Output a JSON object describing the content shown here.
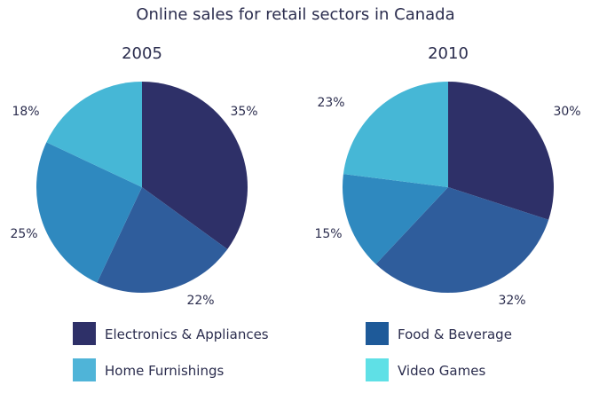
{
  "chart_data": {
    "type": "pie",
    "title": "Online sales for retail sectors in Canada",
    "categories": [
      "Electronics & Appliances",
      "Food & Beverage",
      "Home Furnishings",
      "Video Games"
    ],
    "series": [
      {
        "name": "2005",
        "values": [
          35,
          22,
          25,
          18
        ],
        "labels": [
          "35%",
          "22%",
          "25%",
          "18%"
        ]
      },
      {
        "name": "2010",
        "values": [
          30,
          32,
          15,
          23
        ],
        "labels": [
          "30%",
          "32%",
          "15%",
          "23%"
        ]
      }
    ],
    "legend": {
      "placement": "bottom",
      "items": [
        {
          "label": "Electronics & Appliances",
          "color": "#2e3068"
        },
        {
          "label": "Food & Beverage",
          "color": "#1e5a99"
        },
        {
          "label": "Home Furnishings",
          "color": "#4fb4d8"
        },
        {
          "label": "Video Games",
          "color": "#5fe0e6"
        }
      ]
    },
    "slice_colors": [
      "#2e3068",
      "#2f5d9c",
      "#2f89bf",
      "#46b7d6"
    ]
  }
}
